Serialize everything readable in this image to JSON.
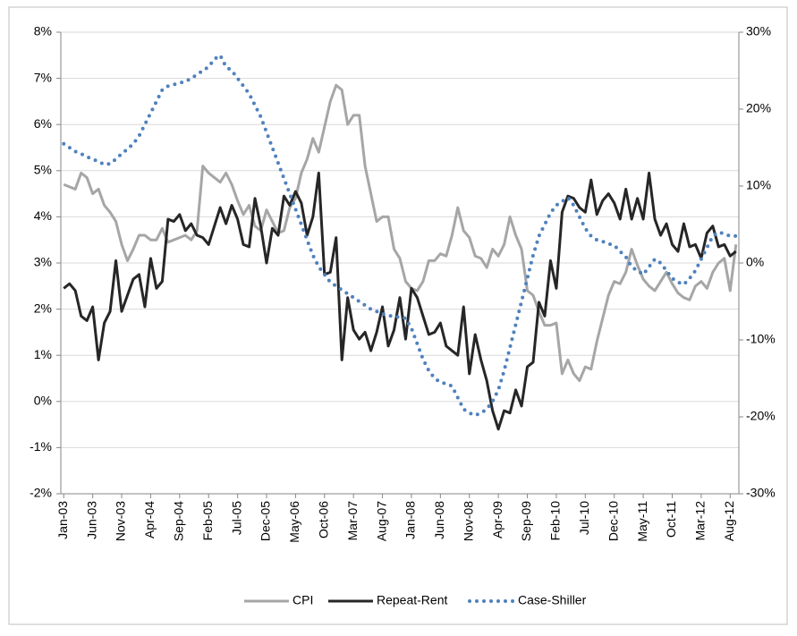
{
  "chart_data": {
    "type": "line",
    "categories": [
      "Jan-03",
      null,
      null,
      null,
      null,
      "Jun-03",
      null,
      null,
      null,
      null,
      "Nov-03",
      null,
      null,
      null,
      null,
      "Apr-04",
      null,
      null,
      null,
      null,
      "Sep-04",
      null,
      null,
      null,
      null,
      "Feb-05",
      null,
      null,
      null,
      null,
      "Jul-05",
      null,
      null,
      null,
      null,
      "Dec-05",
      null,
      null,
      null,
      null,
      "May-06",
      null,
      null,
      null,
      null,
      "Oct-06",
      null,
      null,
      null,
      null,
      "Mar-07",
      null,
      null,
      null,
      null,
      "Aug-07",
      null,
      null,
      null,
      null,
      "Jan-08",
      null,
      null,
      null,
      null,
      "Jun-08",
      null,
      null,
      null,
      null,
      "Nov-08",
      null,
      null,
      null,
      null,
      "Apr-09",
      null,
      null,
      null,
      null,
      "Sep-09",
      null,
      null,
      null,
      null,
      "Feb-10",
      null,
      null,
      null,
      null,
      "Jul-10",
      null,
      null,
      null,
      null,
      "Dec-10",
      null,
      null,
      null,
      null,
      "May-11",
      null,
      null,
      null,
      null,
      "Oct-11",
      null,
      null,
      null,
      null,
      "Mar-12",
      null,
      null,
      null,
      null,
      "Aug-12",
      null
    ],
    "series": [
      {
        "name": "CPI",
        "color": "#a6a6a6",
        "style": "solid",
        "values": [
          4.7,
          4.65,
          4.6,
          4.95,
          4.85,
          4.5,
          4.6,
          4.25,
          4.1,
          3.9,
          3.4,
          3.05,
          3.3,
          3.6,
          3.6,
          3.5,
          3.5,
          3.75,
          3.45,
          3.5,
          3.55,
          3.6,
          3.5,
          3.7,
          5.1,
          4.95,
          4.85,
          4.75,
          4.95,
          4.7,
          4.35,
          4.05,
          4.25,
          3.8,
          3.7,
          4.15,
          3.9,
          3.65,
          3.7,
          4.2,
          4.4,
          4.95,
          5.25,
          5.7,
          5.4,
          5.95,
          6.5,
          6.85,
          6.75,
          6.0,
          6.2,
          6.2,
          5.1,
          4.5,
          3.9,
          4.0,
          4.0,
          3.3,
          3.1,
          2.6,
          2.45,
          2.4,
          2.6,
          3.05,
          3.05,
          3.2,
          3.15,
          3.6,
          4.2,
          3.7,
          3.55,
          3.15,
          3.1,
          2.9,
          3.3,
          3.15,
          3.4,
          4.0,
          3.6,
          3.3,
          2.4,
          2.3,
          1.95,
          1.65,
          1.65,
          1.7,
          0.6,
          0.9,
          0.6,
          0.45,
          0.75,
          0.7,
          1.3,
          1.8,
          2.3,
          2.6,
          2.55,
          2.8,
          3.3,
          2.95,
          2.65,
          2.5,
          2.4,
          2.6,
          2.8,
          2.55,
          2.35,
          2.25,
          2.2,
          2.5,
          2.6,
          2.45,
          2.8,
          3.0,
          3.1,
          2.4,
          3.4
        ]
      },
      {
        "name": "Repeat-Rent",
        "color": "#262626",
        "style": "solid",
        "values": [
          2.45,
          2.55,
          2.4,
          1.85,
          1.75,
          2.05,
          0.9,
          1.7,
          1.95,
          3.05,
          1.95,
          2.3,
          2.65,
          2.75,
          2.05,
          3.1,
          2.45,
          2.6,
          3.95,
          3.9,
          4.05,
          3.7,
          3.85,
          3.6,
          3.55,
          3.4,
          3.8,
          4.2,
          3.85,
          4.25,
          3.95,
          3.4,
          3.35,
          4.4,
          3.8,
          3.0,
          3.75,
          3.6,
          4.45,
          4.25,
          4.55,
          4.3,
          3.6,
          4.0,
          4.95,
          2.75,
          2.8,
          3.55,
          0.9,
          2.25,
          1.55,
          1.35,
          1.5,
          1.1,
          1.5,
          2.05,
          1.2,
          1.55,
          2.25,
          1.35,
          2.45,
          2.25,
          1.85,
          1.45,
          1.5,
          1.7,
          1.2,
          1.1,
          1.0,
          2.05,
          0.6,
          1.45,
          0.9,
          0.45,
          -0.2,
          -0.6,
          -0.2,
          -0.25,
          0.25,
          -0.1,
          0.75,
          0.85,
          2.15,
          1.85,
          3.05,
          2.45,
          4.1,
          4.45,
          4.4,
          4.2,
          4.1,
          4.8,
          4.05,
          4.35,
          4.5,
          4.3,
          3.95,
          4.6,
          3.95,
          4.4,
          3.95,
          4.95,
          3.95,
          3.6,
          3.85,
          3.4,
          3.25,
          3.85,
          3.35,
          3.4,
          3.1,
          3.65,
          3.8,
          3.35,
          3.4,
          3.15,
          3.25
        ]
      },
      {
        "name": "Case-Shiller",
        "color": "#4f81bd",
        "style": "dotted",
        "axis": "y2",
        "values": [
          15.5,
          15.0,
          14.5,
          14.2,
          13.8,
          13.5,
          13.2,
          12.8,
          12.9,
          13.5,
          14.2,
          14.8,
          15.5,
          16.5,
          18.0,
          19.5,
          21.0,
          22.5,
          23.0,
          23.2,
          23.4,
          23.6,
          24.0,
          24.5,
          25.0,
          25.5,
          26.5,
          27.0,
          25.5,
          25.0,
          24.0,
          23.0,
          22.0,
          20.5,
          19.0,
          17.0,
          15.0,
          13.0,
          11.0,
          9.0,
          7.0,
          5.0,
          3.0,
          1.0,
          -0.5,
          -1.5,
          -2.5,
          -3.0,
          -3.5,
          -4.0,
          -4.5,
          -5.0,
          -5.5,
          -6.0,
          -6.3,
          -6.6,
          -6.8,
          -7.0,
          -7.0,
          -7.2,
          -8.5,
          -10.5,
          -12.5,
          -14.0,
          -15.0,
          -15.5,
          -15.7,
          -16.0,
          -17.5,
          -19.0,
          -19.5,
          -19.8,
          -19.5,
          -19.0,
          -18.0,
          -16.5,
          -14.0,
          -11.0,
          -8.0,
          -5.0,
          -2.0,
          1.0,
          3.5,
          5.0,
          6.5,
          7.5,
          8.0,
          8.5,
          7.5,
          6.0,
          4.5,
          3.5,
          3.0,
          2.8,
          2.5,
          2.3,
          1.5,
          0.8,
          -0.5,
          -1.0,
          -1.5,
          -0.5,
          0.5,
          0.0,
          -1.0,
          -2.0,
          -2.5,
          -2.8,
          -2.0,
          -1.0,
          0.5,
          2.0,
          3.5,
          4.0,
          3.8,
          3.5,
          3.5
        ]
      }
    ],
    "ylim": [
      -2,
      8
    ],
    "yticks": [
      {
        "value": -2,
        "label": "-2%"
      },
      {
        "value": -1,
        "label": "-1%"
      },
      {
        "value": 0,
        "label": "0%"
      },
      {
        "value": 1,
        "label": "1%"
      },
      {
        "value": 2,
        "label": "2%"
      },
      {
        "value": 3,
        "label": "3%"
      },
      {
        "value": 4,
        "label": "4%"
      },
      {
        "value": 5,
        "label": "5%"
      },
      {
        "value": 6,
        "label": "6%"
      },
      {
        "value": 7,
        "label": "7%"
      },
      {
        "value": 8,
        "label": "8%"
      }
    ],
    "y2lim": [
      -30,
      30
    ],
    "y2ticks": [
      {
        "value": -30,
        "label": "-30%"
      },
      {
        "value": -20,
        "label": "-20%"
      },
      {
        "value": -10,
        "label": "-10%"
      },
      {
        "value": 0,
        "label": "0%"
      },
      {
        "value": 10,
        "label": "10%"
      },
      {
        "value": 20,
        "label": "20%"
      },
      {
        "value": 30,
        "label": "30%"
      }
    ],
    "grid": true,
    "legend": "bottom"
  }
}
